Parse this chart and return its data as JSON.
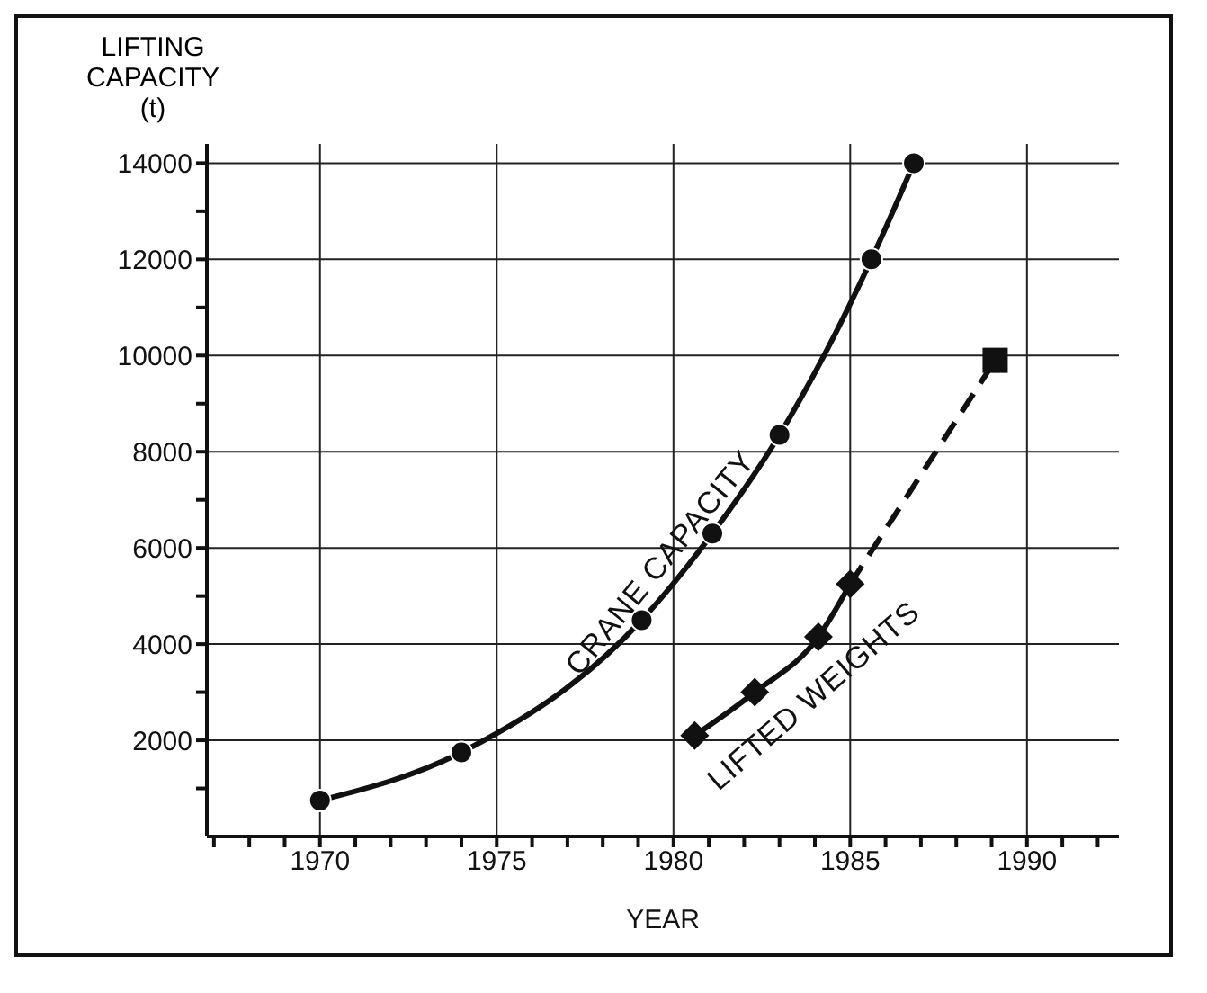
{
  "chart_data": {
    "type": "line",
    "ylabel": "LIFTING CAPACITY (t)",
    "xlabel": "YEAR",
    "series": [
      {
        "name": "CRANE CAPACITY",
        "color": "#111111",
        "x": [
          1970,
          1974,
          1979.1,
          1981.1,
          1983,
          1985.6,
          1986.8
        ],
        "values": [
          750,
          1750,
          4500,
          6300,
          8350,
          12000,
          14000
        ],
        "marker": "circle",
        "line_style": "solid"
      },
      {
        "name": "LIFTED WEIGHTS",
        "color": "#111111",
        "x": [
          1980.6,
          1982.3,
          1984.1,
          1985
        ],
        "values": [
          2100,
          3000,
          4150,
          5250
        ],
        "marker": "diamond",
        "line_style": "solid"
      },
      {
        "color": "#111111",
        "x": [
          1985,
          1989.1
        ],
        "values": [
          5250,
          9900
        ],
        "marker": "none",
        "line_style": "dashed"
      },
      {
        "type": "scatter",
        "color": "#111111",
        "x": [
          1989.1
        ],
        "values": [
          9900
        ],
        "marker": "square"
      }
    ],
    "xlim": [
      1966.8,
      1992.6
    ],
    "xticks": [
      {
        "value": 1967,
        "label": null
      },
      {
        "value": 1968,
        "label": null
      },
      {
        "value": 1969,
        "label": null
      },
      1970,
      {
        "value": 1971,
        "label": null
      },
      {
        "value": 1972,
        "label": null
      },
      {
        "value": 1973,
        "label": null
      },
      {
        "value": 1974,
        "label": null
      },
      1975,
      {
        "value": 1976,
        "label": null
      },
      {
        "value": 1977,
        "label": null
      },
      {
        "value": 1978,
        "label": null
      },
      {
        "value": 1979,
        "label": null
      },
      1980,
      {
        "value": 1981,
        "label": null
      },
      {
        "value": 1982,
        "label": null
      },
      {
        "value": 1983,
        "label": null
      },
      {
        "value": 1984,
        "label": null
      },
      1985,
      {
        "value": 1986,
        "label": null
      },
      {
        "value": 1987,
        "label": null
      },
      {
        "value": 1988,
        "label": null
      },
      {
        "value": 1989,
        "label": null
      },
      1990,
      {
        "value": 1991,
        "label": null
      },
      {
        "value": 1992,
        "label": null
      }
    ],
    "ylim": [
      0,
      14400
    ],
    "yticks": [
      {
        "value": 1000,
        "label": null
      },
      2000,
      {
        "value": 3000,
        "label": null
      },
      4000,
      {
        "value": 5000,
        "label": null
      },
      6000,
      {
        "value": 7000,
        "label": null
      },
      8000,
      {
        "value": 9000,
        "label": null
      },
      10000,
      {
        "value": 11000,
        "label": null
      },
      12000,
      {
        "value": 13000,
        "label": null
      },
      14000
    ],
    "grid": true
  }
}
